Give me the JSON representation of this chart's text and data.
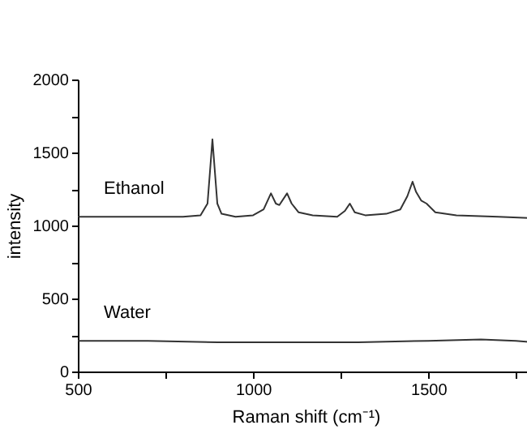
{
  "chart_data": {
    "type": "line",
    "xlabel": "Raman shift (cm⁻¹)",
    "ylabel": "intensity",
    "xlim": [
      500,
      1800
    ],
    "ylim": [
      0,
      2000
    ],
    "xticks": [
      500,
      {
        "value": 750,
        "label": null
      },
      1000,
      {
        "value": 1250,
        "label": null
      },
      1500,
      {
        "value": 1750,
        "label": null
      }
    ],
    "yticks": [
      0,
      {
        "value": 250,
        "label": null
      },
      500,
      {
        "value": 750,
        "label": null
      },
      1000,
      {
        "value": 1250,
        "label": null
      },
      1500,
      {
        "value": 1750,
        "label": null
      },
      2000
    ],
    "grid": false,
    "legend": false,
    "marker": "none",
    "line_style": "solid",
    "series": [
      {
        "name": "Ethanol",
        "color": "#333333",
        "x": [
          500,
          800,
          850,
          870,
          878,
          884,
          890,
          898,
          910,
          950,
          1000,
          1030,
          1051,
          1065,
          1075,
          1097,
          1110,
          1130,
          1170,
          1240,
          1262,
          1276,
          1290,
          1320,
          1380,
          1420,
          1440,
          1455,
          1465,
          1480,
          1495,
          1520,
          1580,
          1700,
          1800
        ],
        "values": [
          1060,
          1060,
          1070,
          1150,
          1400,
          1590,
          1400,
          1150,
          1080,
          1060,
          1070,
          1110,
          1220,
          1150,
          1140,
          1220,
          1150,
          1090,
          1070,
          1060,
          1100,
          1150,
          1090,
          1070,
          1080,
          1110,
          1200,
          1300,
          1230,
          1170,
          1150,
          1090,
          1070,
          1060,
          1050
        ]
      },
      {
        "name": "Water",
        "color": "#333333",
        "x": [
          500,
          700,
          900,
          1100,
          1300,
          1500,
          1650,
          1750,
          1800
        ],
        "values": [
          210,
          210,
          200,
          200,
          200,
          210,
          220,
          210,
          200
        ]
      }
    ]
  }
}
